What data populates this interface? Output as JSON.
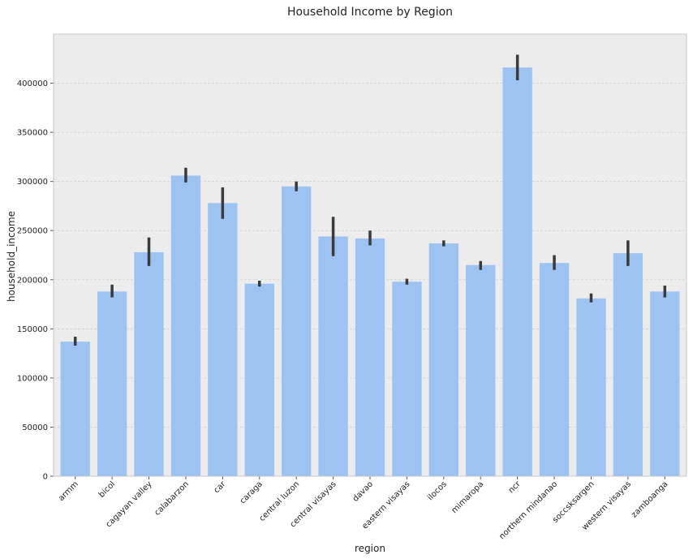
{
  "chart_data": {
    "type": "bar",
    "title": "Household Income by Region",
    "xlabel": "region",
    "ylabel": "household_income",
    "ylim": [
      0,
      450000
    ],
    "yticks": [
      0,
      50000,
      100000,
      150000,
      200000,
      250000,
      300000,
      350000,
      400000
    ],
    "ytick_labels": [
      "0",
      "50000",
      "100000",
      "150000",
      "200000",
      "250000",
      "300000",
      "350000",
      "400000"
    ],
    "categories": [
      "armm",
      "bicol",
      "cagayan valley",
      "calabarzon",
      "car",
      "caraga",
      "central luzon",
      "central visayas",
      "davao",
      "eastern visayas",
      "ilocos",
      "mimaropa",
      "ncr",
      "northern mindanao",
      "soccsksargen",
      "western visayas",
      "zamboanga"
    ],
    "values": [
      137000,
      188000,
      228000,
      306000,
      278000,
      196000,
      295000,
      244000,
      242000,
      198000,
      237000,
      215000,
      416000,
      217000,
      181000,
      227000,
      188000
    ],
    "error_bars": [
      [
        133000,
        142000
      ],
      [
        182000,
        195000
      ],
      [
        214000,
        243000
      ],
      [
        299000,
        314000
      ],
      [
        262000,
        294000
      ],
      [
        193000,
        199000
      ],
      [
        290000,
        300000
      ],
      [
        224000,
        264000
      ],
      [
        235000,
        250000
      ],
      [
        195000,
        201000
      ],
      [
        234000,
        240000
      ],
      [
        210000,
        219000
      ],
      [
        403000,
        429000
      ],
      [
        210000,
        225000
      ],
      [
        177000,
        186000
      ],
      [
        214000,
        240000
      ],
      [
        182000,
        194000
      ]
    ],
    "grid": true,
    "colors": {
      "bar": "#9dc3f2",
      "error_bar": "#3a3a3a",
      "plot_background": "#ececec",
      "grid": "#cfcfcf",
      "frame": "#c8c8c8"
    }
  }
}
